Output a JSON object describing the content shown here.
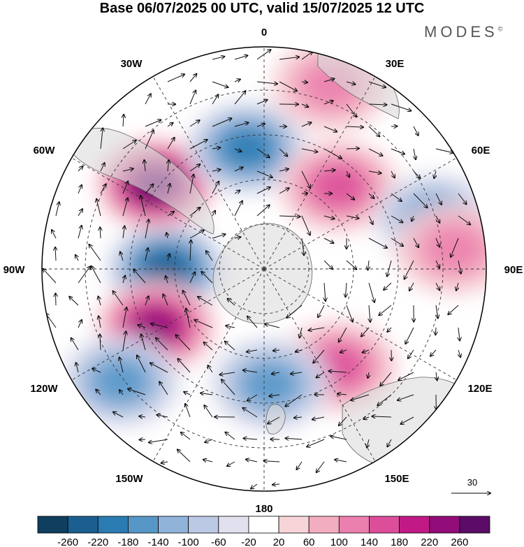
{
  "title": "Base 06/07/2025 00 UTC, valid 15/07/2025 12 UTC",
  "brand": "MODES",
  "brand_mark": "©",
  "longitude_labels": [
    "0",
    "30E",
    "60E",
    "90E",
    "120E",
    "150E",
    "180",
    "150W",
    "120W",
    "90W",
    "60W",
    "30W"
  ],
  "vector_reference": "30",
  "colorbar": {
    "ticks": [
      "-260",
      "-220",
      "-180",
      "-140",
      "-100",
      "-60",
      "-20",
      "20",
      "60",
      "100",
      "140",
      "180",
      "220",
      "260"
    ],
    "colors": [
      "#0f3e5e",
      "#1a5f8f",
      "#2b7bb3",
      "#5697c8",
      "#8fb3d9",
      "#bcc9e4",
      "#e0e0ee",
      "#ffffff",
      "#f7d4d8",
      "#f3adc0",
      "#eb7fad",
      "#dc4d9a",
      "#c11a86",
      "#920c7a",
      "#5a0c66"
    ]
  },
  "icons": {
    "land": "antarctica-landmass-icon",
    "vector": "wind-vector-icon"
  },
  "anomaly_centers": [
    {
      "sign": "negative",
      "lon_deg": -90,
      "lat_ring": 0.44,
      "magnitude": 220
    },
    {
      "sign": "positive",
      "lon_deg": -52,
      "lat_ring": 0.62,
      "magnitude": 260
    },
    {
      "sign": "negative",
      "lon_deg": -8,
      "lat_ring": 0.55,
      "magnitude": 180
    },
    {
      "sign": "positive",
      "lon_deg": 42,
      "lat_ring": 0.5,
      "magnitude": 140
    },
    {
      "sign": "negative",
      "lon_deg": 74,
      "lat_ring": 0.8,
      "magnitude": 140
    },
    {
      "sign": "positive",
      "lon_deg": 84,
      "lat_ring": 0.86,
      "magnitude": 100
    },
    {
      "sign": "positive",
      "lon_deg": 143,
      "lat_ring": 0.55,
      "magnitude": 140
    },
    {
      "sign": "negative",
      "lon_deg": 177,
      "lat_ring": 0.52,
      "magnitude": 140
    },
    {
      "sign": "positive",
      "lon_deg": -118,
      "lat_ring": 0.55,
      "magnitude": 220
    },
    {
      "sign": "negative",
      "lon_deg": -128,
      "lat_ring": 0.82,
      "magnitude": 160
    },
    {
      "sign": "positive",
      "lon_deg": 20,
      "lat_ring": 0.88,
      "magnitude": 100
    }
  ]
}
